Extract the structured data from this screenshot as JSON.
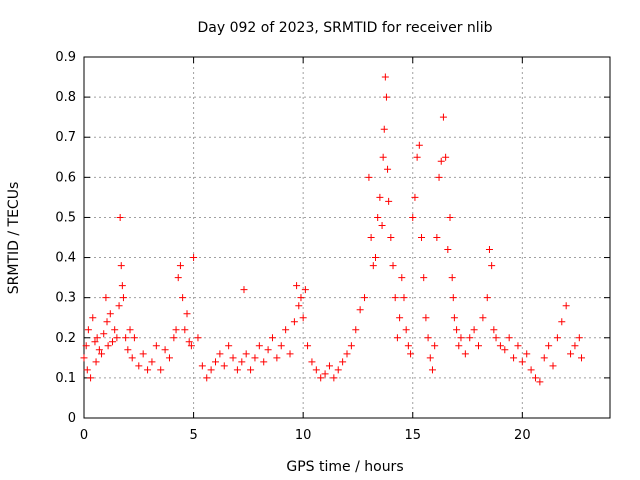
{
  "chart_data": {
    "type": "scatter",
    "title": "Day 092 of 2023, SRMTID for receiver nlib",
    "xlabel": "GPS time / hours",
    "ylabel": "SRMTID / TECUs",
    "xlim": [
      0,
      24
    ],
    "ylim": [
      0,
      0.9
    ],
    "xticks": [
      0,
      5,
      10,
      15,
      20
    ],
    "xtick_labels": [
      "0",
      "5",
      "10",
      "15",
      "20"
    ],
    "yticks": [
      0,
      0.1,
      0.2,
      0.3,
      0.4,
      0.5,
      0.6,
      0.7,
      0.8,
      0.9
    ],
    "ytick_labels": [
      "0",
      "0.1",
      "0.2",
      "0.3",
      "0.4",
      "0.5",
      "0.6",
      "0.7",
      "0.8",
      "0.9"
    ],
    "grid": true,
    "marker": "+",
    "series": [
      {
        "name": "SRMTID",
        "color": "#ff0000",
        "x": [
          0.0,
          0.1,
          0.15,
          0.2,
          0.3,
          0.4,
          0.5,
          0.55,
          0.6,
          0.7,
          0.8,
          0.9,
          1.0,
          1.05,
          1.1,
          1.2,
          1.3,
          1.4,
          1.5,
          1.6,
          1.65,
          1.7,
          1.75,
          1.8,
          1.9,
          2.0,
          2.1,
          2.2,
          2.3,
          2.5,
          2.7,
          2.9,
          3.1,
          3.3,
          3.5,
          3.7,
          3.9,
          4.1,
          4.2,
          4.3,
          4.4,
          4.5,
          4.6,
          4.7,
          4.8,
          4.9,
          5.0,
          5.2,
          5.4,
          5.6,
          5.8,
          6.0,
          6.2,
          6.4,
          6.6,
          6.8,
          7.0,
          7.2,
          7.3,
          7.4,
          7.6,
          7.8,
          8.0,
          8.2,
          8.4,
          8.6,
          8.8,
          9.0,
          9.2,
          9.4,
          9.6,
          9.7,
          9.8,
          9.9,
          10.0,
          10.1,
          10.2,
          10.4,
          10.6,
          10.8,
          11.0,
          11.2,
          11.4,
          11.6,
          11.8,
          12.0,
          12.2,
          12.4,
          12.6,
          12.8,
          13.0,
          13.1,
          13.2,
          13.3,
          13.4,
          13.5,
          13.6,
          13.65,
          13.7,
          13.75,
          13.8,
          13.85,
          13.9,
          14.0,
          14.1,
          14.2,
          14.3,
          14.4,
          14.5,
          14.6,
          14.7,
          14.8,
          14.9,
          15.0,
          15.1,
          15.2,
          15.3,
          15.4,
          15.5,
          15.6,
          15.7,
          15.8,
          15.9,
          16.0,
          16.1,
          16.2,
          16.3,
          16.4,
          16.5,
          16.6,
          16.7,
          16.8,
          16.85,
          16.9,
          17.0,
          17.1,
          17.2,
          17.4,
          17.6,
          17.8,
          18.0,
          18.2,
          18.4,
          18.5,
          18.6,
          18.7,
          18.8,
          19.0,
          19.2,
          19.4,
          19.6,
          19.8,
          20.0,
          20.2,
          20.4,
          20.6,
          20.8,
          21.0,
          21.2,
          21.4,
          21.6,
          21.8,
          22.0,
          22.2,
          22.4,
          22.6,
          22.7
        ],
        "y": [
          0.15,
          0.18,
          0.12,
          0.22,
          0.1,
          0.25,
          0.19,
          0.14,
          0.2,
          0.17,
          0.16,
          0.21,
          0.3,
          0.24,
          0.18,
          0.26,
          0.19,
          0.22,
          0.2,
          0.28,
          0.5,
          0.38,
          0.33,
          0.3,
          0.2,
          0.17,
          0.22,
          0.15,
          0.2,
          0.13,
          0.16,
          0.12,
          0.14,
          0.18,
          0.12,
          0.17,
          0.15,
          0.2,
          0.22,
          0.35,
          0.38,
          0.3,
          0.22,
          0.26,
          0.19,
          0.18,
          0.4,
          0.2,
          0.13,
          0.1,
          0.12,
          0.14,
          0.16,
          0.13,
          0.18,
          0.15,
          0.12,
          0.14,
          0.32,
          0.16,
          0.12,
          0.15,
          0.18,
          0.14,
          0.17,
          0.2,
          0.15,
          0.18,
          0.22,
          0.16,
          0.24,
          0.33,
          0.28,
          0.3,
          0.25,
          0.32,
          0.18,
          0.14,
          0.12,
          0.1,
          0.11,
          0.13,
          0.1,
          0.12,
          0.14,
          0.16,
          0.18,
          0.22,
          0.27,
          0.3,
          0.6,
          0.45,
          0.38,
          0.4,
          0.5,
          0.55,
          0.48,
          0.65,
          0.72,
          0.85,
          0.8,
          0.62,
          0.54,
          0.45,
          0.38,
          0.3,
          0.2,
          0.25,
          0.35,
          0.3,
          0.22,
          0.18,
          0.16,
          0.5,
          0.55,
          0.65,
          0.68,
          0.45,
          0.35,
          0.25,
          0.2,
          0.15,
          0.12,
          0.18,
          0.45,
          0.6,
          0.64,
          0.75,
          0.65,
          0.42,
          0.5,
          0.35,
          0.3,
          0.25,
          0.22,
          0.18,
          0.2,
          0.16,
          0.2,
          0.22,
          0.18,
          0.25,
          0.3,
          0.42,
          0.38,
          0.22,
          0.2,
          0.18,
          0.17,
          0.2,
          0.15,
          0.18,
          0.14,
          0.16,
          0.12,
          0.1,
          0.09,
          0.15,
          0.18,
          0.13,
          0.2,
          0.24,
          0.28,
          0.16,
          0.18,
          0.2,
          0.15
        ]
      }
    ]
  }
}
